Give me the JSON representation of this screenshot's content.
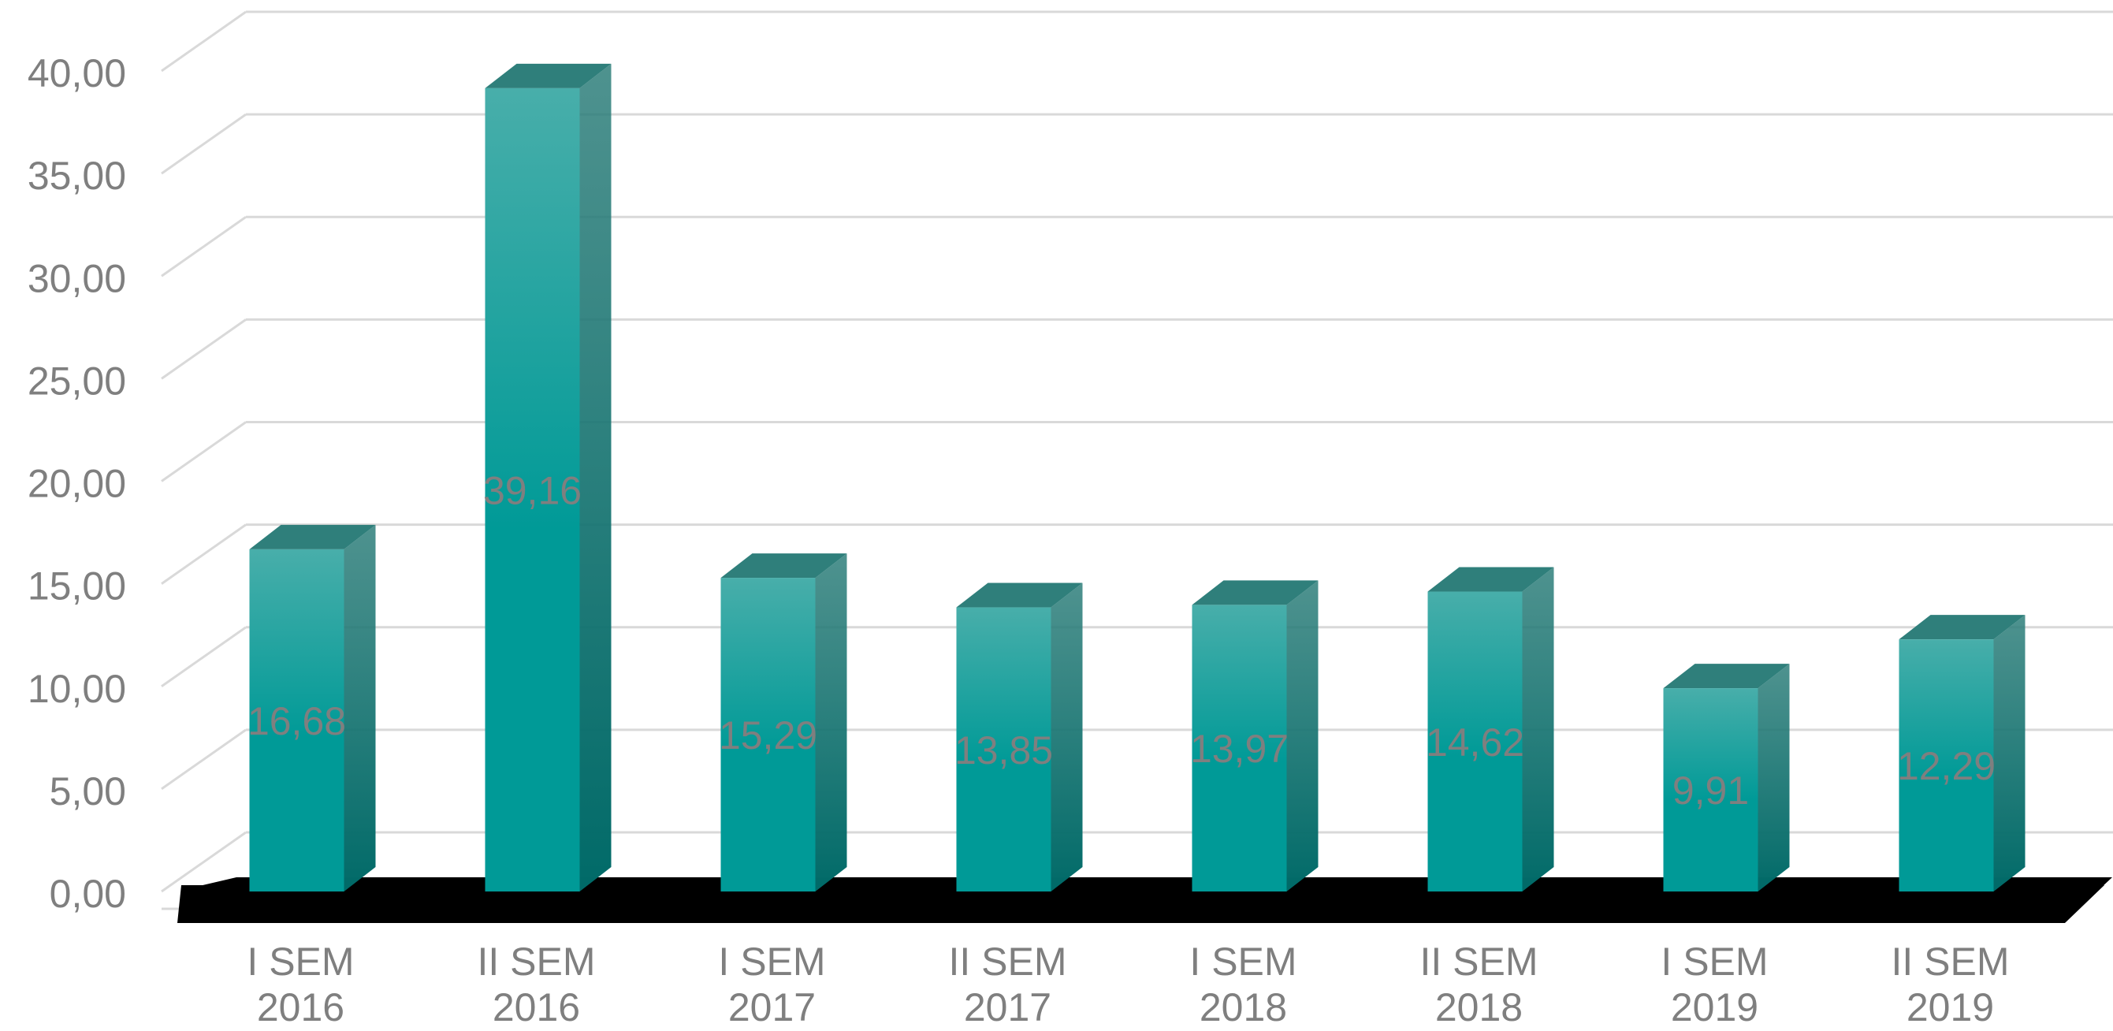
{
  "chart_data": {
    "type": "bar",
    "three_d": true,
    "categories": [
      [
        "I SEM",
        "2016"
      ],
      [
        "II SEM",
        "2016"
      ],
      [
        "I SEM",
        "2017"
      ],
      [
        "II SEM",
        "2017"
      ],
      [
        "I SEM",
        "2018"
      ],
      [
        "II SEM",
        "2018"
      ],
      [
        "I SEM",
        "2019"
      ],
      [
        "II SEM",
        "2019"
      ]
    ],
    "values": [
      16.68,
      39.16,
      15.29,
      13.85,
      13.97,
      14.62,
      9.91,
      12.29
    ],
    "value_labels": [
      "16,68",
      "39,16",
      "15,29",
      "13,85",
      "13,97",
      "14,62",
      "9,91",
      "12,29"
    ],
    "ylim": [
      0,
      40
    ],
    "yticks": [
      "0,00",
      "5,00",
      "10,00",
      "15,00",
      "20,00",
      "25,00",
      "30,00",
      "35,00",
      "40,00"
    ],
    "grid": true,
    "legend": "none",
    "colors": {
      "bar_front_top": "#48aeaa",
      "bar_front_bottom": "#009a97",
      "bar_side": "#006a68",
      "bar_top": "#2f7f7b",
      "grid": "#d9d9d9",
      "text": "#7f7f7f",
      "floor_shadow": "#000000"
    }
  }
}
